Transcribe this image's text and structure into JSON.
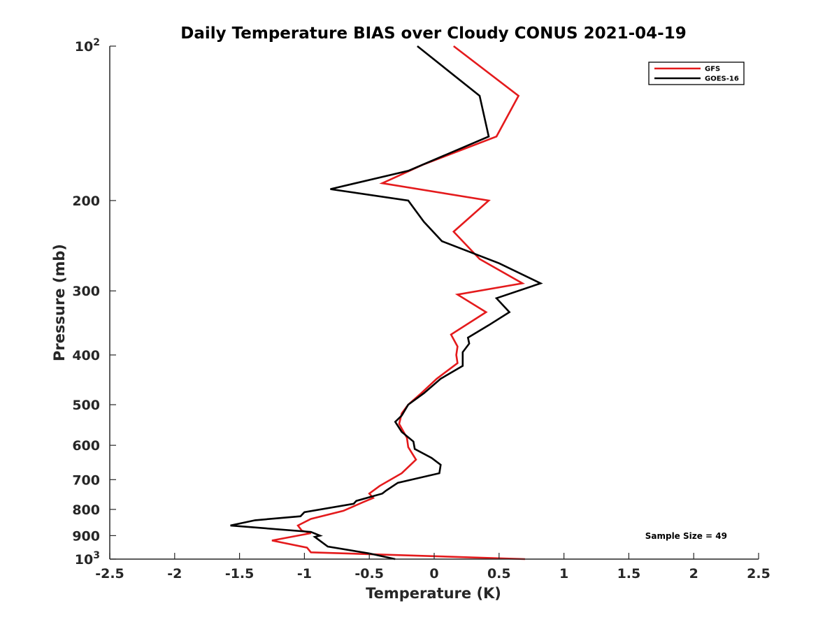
{
  "chart_data": {
    "type": "line",
    "title": "Daily Temperature BIAS over Cloudy CONUS 2021-04-19",
    "xlabel": "Temperature (K)",
    "ylabel": "Pressure (mb)",
    "xlim": [
      -2.5,
      2.5
    ],
    "ylim": [
      1000,
      100
    ],
    "y_scale": "log",
    "y_reversed": true,
    "grid": false,
    "legend_position": "top-right",
    "x_ticks": [
      -2.5,
      -2,
      -1.5,
      -1,
      -0.5,
      0,
      0.5,
      1,
      1.5,
      2,
      2.5
    ],
    "x_tick_labels": [
      "-2.5",
      "-2",
      "-1.5",
      "-1",
      "-0.5",
      "0",
      "0.5",
      "1",
      "1.5",
      "2",
      "2.5"
    ],
    "y_ticks": [
      100,
      200,
      300,
      400,
      500,
      600,
      700,
      800,
      900,
      1000
    ],
    "y_tick_labels": [
      {
        "base": "10",
        "exp": "2"
      },
      {
        "base": "200",
        "exp": ""
      },
      {
        "base": "300",
        "exp": ""
      },
      {
        "base": "400",
        "exp": ""
      },
      {
        "base": "500",
        "exp": ""
      },
      {
        "base": "600",
        "exp": ""
      },
      {
        "base": "700",
        "exp": ""
      },
      {
        "base": "800",
        "exp": ""
      },
      {
        "base": "900",
        "exp": ""
      },
      {
        "base": "10",
        "exp": "3"
      }
    ],
    "annotation": "Sample Size = 49",
    "series": [
      {
        "name": "GFS",
        "color": "#e41a1c",
        "points": [
          [
            0.15,
            100
          ],
          [
            0.65,
            125
          ],
          [
            0.48,
            150
          ],
          [
            -0.08,
            170
          ],
          [
            -0.4,
            185
          ],
          [
            0.42,
            200
          ],
          [
            0.15,
            230
          ],
          [
            0.35,
            260
          ],
          [
            0.68,
            290
          ],
          [
            0.18,
            305
          ],
          [
            0.4,
            330
          ],
          [
            0.13,
            365
          ],
          [
            0.18,
            385
          ],
          [
            0.17,
            400
          ],
          [
            0.18,
            415
          ],
          [
            0.02,
            445
          ],
          [
            -0.1,
            475
          ],
          [
            -0.2,
            500
          ],
          [
            -0.25,
            520
          ],
          [
            -0.27,
            545
          ],
          [
            -0.21,
            580
          ],
          [
            -0.2,
            605
          ],
          [
            -0.14,
            640
          ],
          [
            -0.25,
            680
          ],
          [
            -0.42,
            720
          ],
          [
            -0.5,
            745
          ],
          [
            -0.47,
            760
          ],
          [
            -0.55,
            775
          ],
          [
            -0.7,
            805
          ],
          [
            -0.95,
            835
          ],
          [
            -1.05,
            860
          ],
          [
            -1.02,
            880
          ],
          [
            -0.95,
            890
          ],
          [
            -1.25,
            920
          ],
          [
            -0.98,
            950
          ],
          [
            -0.95,
            970
          ],
          [
            0.7,
            1000
          ]
        ]
      },
      {
        "name": "GOES-16",
        "color": "#000000",
        "points": [
          [
            -0.13,
            100
          ],
          [
            0.35,
            125
          ],
          [
            0.42,
            150
          ],
          [
            -0.2,
            175
          ],
          [
            -0.8,
            190
          ],
          [
            -0.2,
            200
          ],
          [
            -0.08,
            220
          ],
          [
            0.06,
            240
          ],
          [
            0.5,
            265
          ],
          [
            0.82,
            290
          ],
          [
            0.48,
            310
          ],
          [
            0.58,
            330
          ],
          [
            0.42,
            350
          ],
          [
            0.26,
            370
          ],
          [
            0.27,
            380
          ],
          [
            0.22,
            395
          ],
          [
            0.22,
            420
          ],
          [
            0.05,
            445
          ],
          [
            -0.08,
            475
          ],
          [
            -0.2,
            500
          ],
          [
            -0.25,
            525
          ],
          [
            -0.3,
            540
          ],
          [
            -0.25,
            565
          ],
          [
            -0.16,
            590
          ],
          [
            -0.15,
            610
          ],
          [
            -0.02,
            635
          ],
          [
            0.05,
            655
          ],
          [
            0.04,
            680
          ],
          [
            -0.28,
            710
          ],
          [
            -0.37,
            735
          ],
          [
            -0.4,
            745
          ],
          [
            -0.6,
            770
          ],
          [
            -0.62,
            780
          ],
          [
            -1.0,
            810
          ],
          [
            -1.03,
            825
          ],
          [
            -1.38,
            840
          ],
          [
            -1.57,
            860
          ],
          [
            -0.95,
            885
          ],
          [
            -0.88,
            900
          ],
          [
            -0.92,
            905
          ],
          [
            -0.82,
            945
          ],
          [
            -0.5,
            975
          ],
          [
            -0.3,
            1000
          ]
        ]
      }
    ]
  }
}
